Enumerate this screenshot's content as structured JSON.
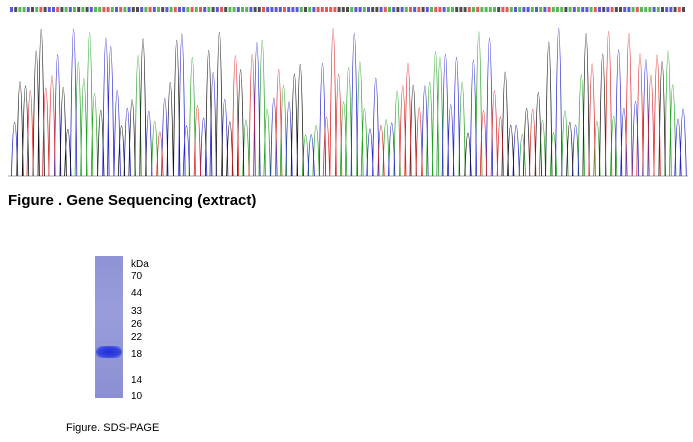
{
  "gene_sequencing": {
    "caption": "Figure . Gene Sequencing (extract)",
    "trace_colors": {
      "A": "#22a022",
      "C": "#2222cc",
      "G": "#111111",
      "T": "#dd2222"
    }
  },
  "sds_page": {
    "caption": "Figure. SDS-PAGE",
    "unit_label": "kDa",
    "markers": [
      "70",
      "44",
      "33",
      "26",
      "22",
      "18",
      "14",
      "10"
    ],
    "band_color": "#2233dd",
    "lane_color": "#9498d8"
  }
}
